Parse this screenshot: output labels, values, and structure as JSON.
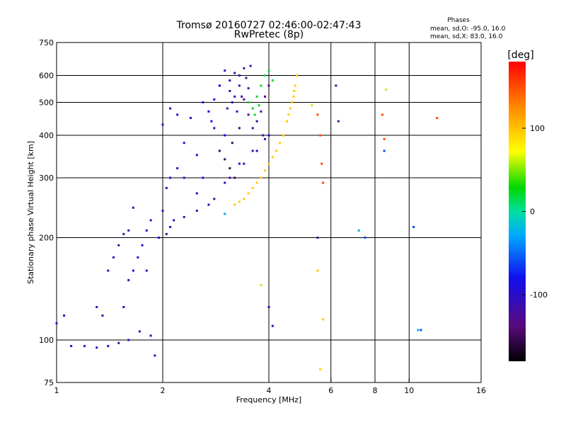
{
  "chart_data": {
    "type": "scatter",
    "title": "Tromsø 20160727 02:46:00-02:47:43",
    "subtitle": "RwPretec (8p)",
    "info": {
      "header": "Phases",
      "line1": "mean, sd,O: -95.0, 16.0",
      "line2": "mean, sd,X:  83.0, 16.0"
    },
    "xlabel": "Frequency [MHz]",
    "ylabel": "Stationary phase Virtual Height [km]",
    "x_scale": "log",
    "y_scale": "log",
    "xlim": [
      1,
      16
    ],
    "ylim": [
      75,
      750
    ],
    "x_ticks": [
      1,
      2,
      4,
      6,
      8,
      10,
      16
    ],
    "x_grid": [
      2,
      4,
      6,
      8,
      10
    ],
    "y_ticks": [
      75,
      100,
      200,
      300,
      400,
      500,
      600,
      750
    ],
    "y_grid": [
      100,
      200,
      300,
      400,
      500,
      600
    ],
    "grid": true,
    "colorbar": {
      "label": "[deg]",
      "range": [
        -180,
        180
      ],
      "ticks": [
        100,
        0,
        -100
      ]
    },
    "series": [
      {
        "color_value": -100,
        "points": [
          [
            1.0,
            112
          ],
          [
            1.05,
            118
          ],
          [
            1.1,
            96
          ],
          [
            1.2,
            96
          ],
          [
            1.3,
            95
          ],
          [
            1.4,
            96
          ],
          [
            1.5,
            98
          ],
          [
            1.6,
            100
          ],
          [
            1.72,
            106
          ],
          [
            1.85,
            103
          ],
          [
            1.9,
            90
          ],
          [
            1.95,
            200
          ],
          [
            2.0,
            240
          ],
          [
            2.05,
            280
          ],
          [
            2.1,
            300
          ],
          [
            2.2,
            320
          ],
          [
            2.3,
            300
          ],
          [
            2.5,
            270
          ],
          [
            2.7,
            250
          ],
          [
            1.55,
            125
          ],
          [
            1.6,
            150
          ],
          [
            1.65,
            160
          ],
          [
            1.7,
            175
          ],
          [
            1.75,
            190
          ],
          [
            1.8,
            210
          ],
          [
            1.85,
            225
          ],
          [
            2.0,
            430
          ],
          [
            2.1,
            480
          ],
          [
            2.2,
            460
          ],
          [
            2.4,
            450
          ],
          [
            2.6,
            500
          ],
          [
            2.8,
            420
          ],
          [
            3.0,
            290
          ],
          [
            3.3,
            330
          ],
          [
            3.6,
            360
          ],
          [
            3.9,
            390
          ],
          [
            4.0,
            400
          ],
          [
            4.0,
            125
          ],
          [
            4.1,
            110
          ]
        ]
      },
      {
        "color_value": -110,
        "points": [
          [
            1.3,
            125
          ],
          [
            1.35,
            118
          ],
          [
            1.4,
            160
          ],
          [
            1.45,
            175
          ],
          [
            1.5,
            190
          ],
          [
            1.55,
            205
          ],
          [
            1.6,
            210
          ],
          [
            1.65,
            245
          ],
          [
            1.8,
            160
          ],
          [
            2.05,
            205
          ],
          [
            2.1,
            215
          ],
          [
            2.15,
            225
          ],
          [
            2.3,
            230
          ],
          [
            2.5,
            240
          ],
          [
            2.8,
            260
          ],
          [
            3.1,
            300
          ],
          [
            3.4,
            330
          ],
          [
            3.7,
            360
          ],
          [
            2.9,
            560
          ],
          [
            3.0,
            620
          ],
          [
            3.1,
            580
          ],
          [
            3.2,
            520
          ],
          [
            3.3,
            600
          ],
          [
            3.4,
            630
          ],
          [
            3.5,
            550
          ],
          [
            3.05,
            480
          ],
          [
            3.15,
            500
          ],
          [
            3.25,
            470
          ]
        ]
      },
      {
        "color_value": -85,
        "points": [
          [
            2.3,
            380
          ],
          [
            2.5,
            350
          ],
          [
            2.7,
            470
          ],
          [
            2.8,
            510
          ],
          [
            2.9,
            560
          ],
          [
            3.0,
            400
          ],
          [
            2.75,
            440
          ],
          [
            2.6,
            300
          ]
        ]
      },
      {
        "color_value": -120,
        "points": [
          [
            3.1,
            540
          ],
          [
            3.2,
            610
          ],
          [
            3.3,
            560
          ],
          [
            3.4,
            510
          ],
          [
            3.5,
            460
          ],
          [
            3.6,
            420
          ],
          [
            3.7,
            440
          ],
          [
            3.8,
            470
          ],
          [
            3.9,
            520
          ],
          [
            4.0,
            560
          ],
          [
            3.85,
            400
          ],
          [
            3.35,
            520
          ],
          [
            3.45,
            590
          ],
          [
            3.55,
            640
          ],
          [
            6.2,
            560
          ],
          [
            6.3,
            440
          ],
          [
            5.5,
            200
          ]
        ]
      },
      {
        "color_value": -150,
        "points": [
          [
            2.9,
            360
          ],
          [
            3.0,
            340
          ],
          [
            3.1,
            320
          ],
          [
            3.2,
            300
          ],
          [
            3.3,
            420
          ],
          [
            3.15,
            380
          ]
        ]
      },
      {
        "color_value": 20,
        "points": [
          [
            3.5,
            500
          ],
          [
            3.6,
            480
          ],
          [
            3.7,
            520
          ],
          [
            3.8,
            560
          ],
          [
            3.9,
            600
          ],
          [
            4.0,
            620
          ],
          [
            4.1,
            580
          ],
          [
            3.65,
            460
          ],
          [
            3.75,
            490
          ]
        ]
      },
      {
        "color_value": 95,
        "points": [
          [
            3.2,
            250
          ],
          [
            3.4,
            260
          ],
          [
            3.6,
            280
          ],
          [
            3.8,
            300
          ],
          [
            4.0,
            330
          ],
          [
            4.2,
            360
          ],
          [
            4.4,
            400
          ],
          [
            4.5,
            440
          ],
          [
            4.6,
            480
          ],
          [
            4.7,
            520
          ],
          [
            4.75,
            560
          ],
          [
            4.8,
            600
          ],
          [
            3.3,
            255
          ],
          [
            3.5,
            270
          ],
          [
            3.7,
            290
          ],
          [
            3.9,
            315
          ],
          [
            4.1,
            345
          ],
          [
            4.3,
            380
          ],
          [
            4.55,
            460
          ],
          [
            4.65,
            500
          ],
          [
            4.72,
            540
          ],
          [
            5.6,
            82
          ],
          [
            5.7,
            115
          ],
          [
            5.5,
            160
          ]
        ]
      },
      {
        "color_value": 150,
        "points": [
          [
            5.5,
            460
          ],
          [
            5.6,
            400
          ],
          [
            5.65,
            330
          ],
          [
            5.7,
            290
          ],
          [
            8.4,
            460
          ],
          [
            8.5,
            390
          ],
          [
            12.0,
            450
          ]
        ]
      },
      {
        "color_value": 60,
        "points": [
          [
            5.3,
            490
          ],
          [
            8.6,
            545
          ],
          [
            3.8,
            145
          ]
        ]
      },
      {
        "color_value": -60,
        "points": [
          [
            8.5,
            360
          ],
          [
            7.5,
            200
          ],
          [
            10.3,
            215
          ],
          [
            10.8,
            107
          ]
        ]
      },
      {
        "color_value": -30,
        "points": [
          [
            7.2,
            210
          ],
          [
            10.6,
            107
          ],
          [
            3.0,
            235
          ]
        ]
      }
    ]
  }
}
